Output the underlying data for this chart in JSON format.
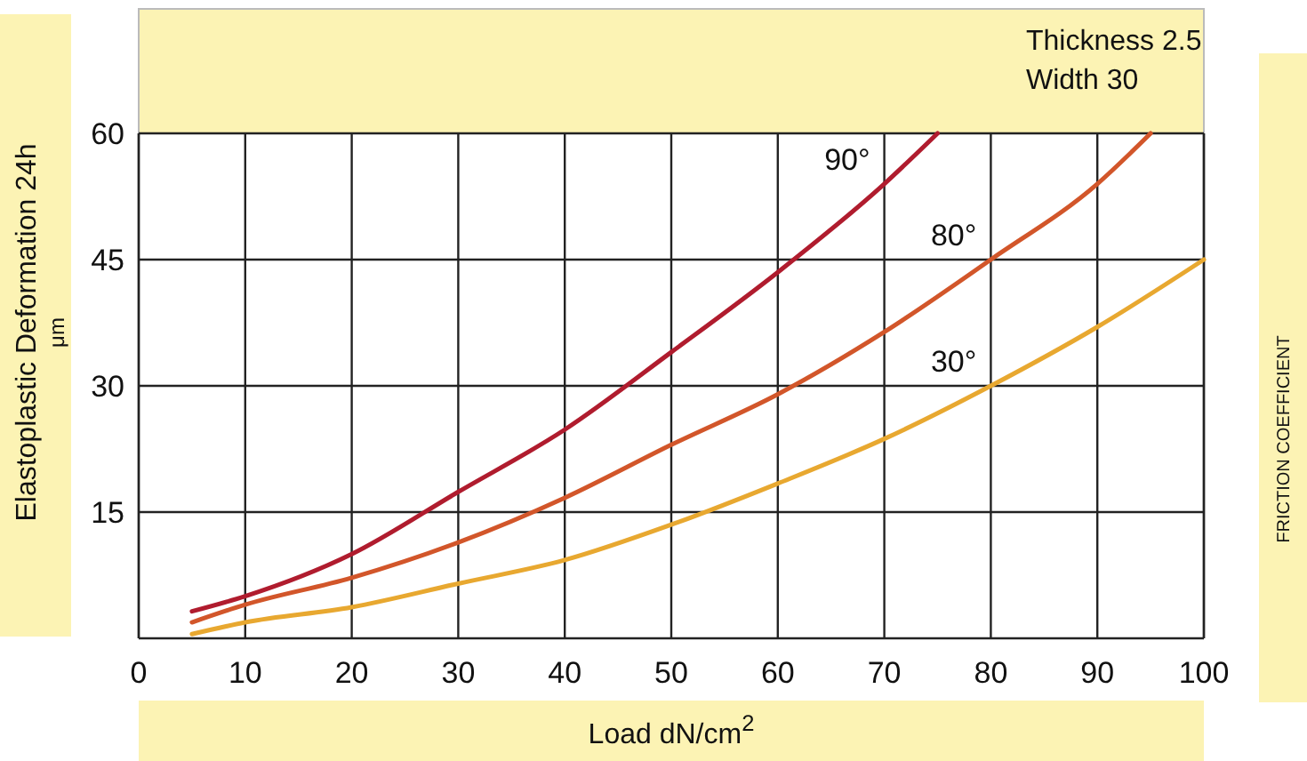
{
  "chart_data": {
    "type": "line",
    "xlabel": "Load dN/cm$^{2}$",
    "ylabel": "Elastoplastic Deformation 24h\nμm",
    "y2label": "FRICTION COEFFICIENT",
    "annotations": [
      "Thickness 2.5",
      "Width 30"
    ],
    "xlim": [
      0,
      100
    ],
    "xticks": [
      0,
      10,
      20,
      30,
      40,
      50,
      60,
      70,
      80,
      90,
      100
    ],
    "ylim": [
      0,
      60
    ],
    "yticks": [
      15,
      30,
      45,
      60
    ],
    "grid": true,
    "series": [
      {
        "name": "90°",
        "color": "#b01c2e",
        "x": [
          5,
          10,
          20,
          30,
          40,
          50,
          60,
          70,
          75
        ],
        "values": [
          3.2,
          5,
          10,
          17.4,
          24.8,
          34,
          43.5,
          54,
          60
        ]
      },
      {
        "name": "80°",
        "color": "#d2562a",
        "x": [
          5,
          10,
          20,
          30,
          40,
          50,
          60,
          70,
          80,
          90,
          95
        ],
        "values": [
          1.9,
          4,
          7.2,
          11.4,
          16.7,
          23,
          29,
          36.4,
          45,
          54,
          60
        ]
      },
      {
        "name": "30°",
        "color": "#e8a830",
        "x": [
          5,
          10,
          20,
          30,
          40,
          50,
          60,
          70,
          80,
          90,
          100
        ],
        "values": [
          0.5,
          1.9,
          3.7,
          6.5,
          9.3,
          13.5,
          18.4,
          23.7,
          30,
          37,
          45
        ]
      }
    ]
  }
}
